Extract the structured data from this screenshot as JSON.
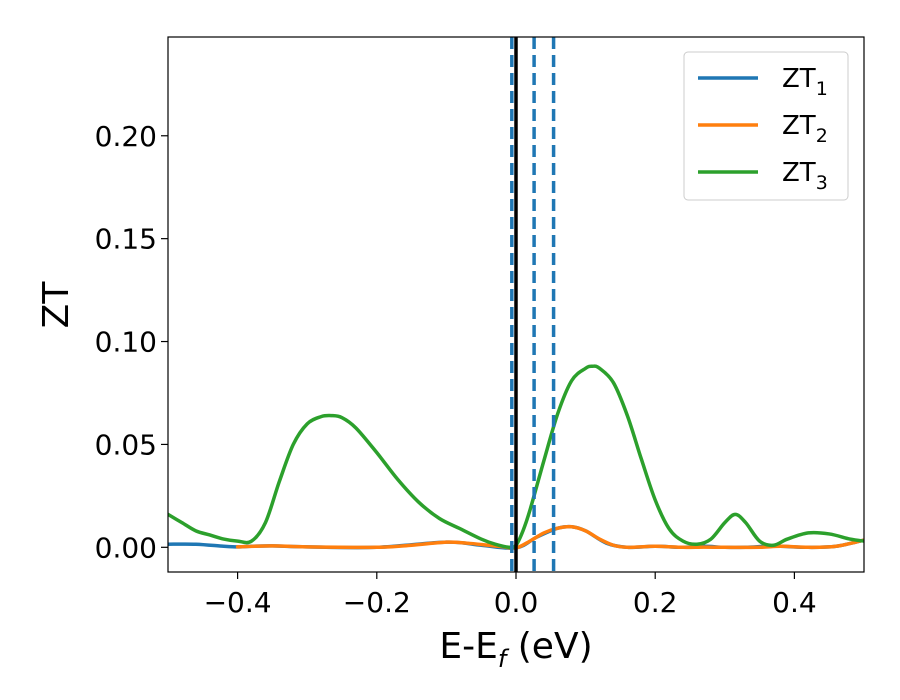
{
  "chart_data": {
    "type": "line",
    "xlabel": "E-E",
    "xlabel_sub": "f",
    "xlabel_unit": " (eV)",
    "ylabel": "ZT",
    "xlim": [
      -0.5,
      0.5
    ],
    "ylim": [
      -0.012,
      0.248
    ],
    "xticks": [
      -0.4,
      -0.2,
      0.0,
      0.2,
      0.4
    ],
    "xtick_labels": [
      "−0.4",
      "−0.2",
      "0.0",
      "0.2",
      "0.4"
    ],
    "yticks": [
      0.0,
      0.05,
      0.1,
      0.15,
      0.2
    ],
    "ytick_labels": [
      "0.00",
      "0.05",
      "0.10",
      "0.15",
      "0.20"
    ],
    "grid": false,
    "legend_position": "top-right",
    "vlines": [
      {
        "x": 0.0,
        "style": "solid",
        "color": "#000000"
      },
      {
        "x": -0.006,
        "style": "dashed",
        "color": "#1f77b4"
      },
      {
        "x": 0.026,
        "style": "dashed",
        "color": "#1f77b4"
      },
      {
        "x": 0.054,
        "style": "dashed",
        "color": "#1f77b4"
      }
    ],
    "series": [
      {
        "name": "ZT",
        "name_sub": "1",
        "color": "#1f77b4",
        "x": [
          -0.5,
          -0.46,
          -0.42,
          -0.4,
          -0.38,
          -0.35,
          -0.3,
          -0.2,
          -0.1,
          -0.05,
          0.0,
          0.03,
          0.06,
          0.08,
          0.1,
          0.13,
          0.16,
          0.2,
          0.24,
          0.27,
          0.3,
          0.33,
          0.36,
          0.38,
          0.42,
          0.46,
          0.5
        ],
        "values": [
          0.0015,
          0.0015,
          0.0005,
          0.0002,
          0.0005,
          0.0007,
          0.0002,
          0.0,
          0.0025,
          0.001,
          -0.0003,
          0.005,
          0.0093,
          0.01,
          0.008,
          0.002,
          0.0,
          0.0005,
          0.0,
          0.0005,
          0.0,
          0.0,
          0.0005,
          0.0005,
          0.0,
          0.0005,
          0.0035
        ]
      },
      {
        "name": "ZT",
        "name_sub": "2",
        "color": "#ff7f0e",
        "x": [
          -0.4,
          -0.35,
          -0.3,
          -0.2,
          -0.15,
          -0.1,
          -0.07,
          -0.04,
          -0.02,
          0.0,
          0.02,
          0.04,
          0.06,
          0.08,
          0.1,
          0.12,
          0.14,
          0.16,
          0.2,
          0.24,
          0.27,
          0.3,
          0.35,
          0.38,
          0.42,
          0.46,
          0.5
        ],
        "values": [
          0.0002,
          0.0007,
          0.0002,
          0.0,
          0.001,
          0.0025,
          0.002,
          0.001,
          0.0003,
          -0.0003,
          0.003,
          0.007,
          0.0093,
          0.01,
          0.008,
          0.004,
          0.001,
          0.0,
          0.0005,
          0.0,
          0.0001,
          0.0,
          0.0,
          0.0005,
          0.0,
          0.0005,
          0.0035
        ]
      },
      {
        "name": "ZT",
        "name_sub": "3",
        "color": "#2ca02c",
        "x": [
          -0.5,
          -0.48,
          -0.46,
          -0.44,
          -0.42,
          -0.4,
          -0.38,
          -0.36,
          -0.34,
          -0.32,
          -0.3,
          -0.28,
          -0.265,
          -0.25,
          -0.23,
          -0.2,
          -0.17,
          -0.14,
          -0.11,
          -0.08,
          -0.05,
          -0.03,
          -0.01,
          0.0,
          0.01,
          0.02,
          0.04,
          0.06,
          0.08,
          0.1,
          0.11,
          0.12,
          0.14,
          0.16,
          0.18,
          0.2,
          0.22,
          0.24,
          0.26,
          0.28,
          0.3,
          0.315,
          0.33,
          0.35,
          0.37,
          0.39,
          0.42,
          0.45,
          0.48,
          0.5
        ],
        "values": [
          0.016,
          0.012,
          0.008,
          0.006,
          0.004,
          0.003,
          0.003,
          0.012,
          0.032,
          0.05,
          0.06,
          0.0635,
          0.064,
          0.063,
          0.058,
          0.046,
          0.033,
          0.022,
          0.014,
          0.009,
          0.004,
          0.0015,
          0.0,
          0.001,
          0.008,
          0.018,
          0.042,
          0.065,
          0.081,
          0.087,
          0.088,
          0.087,
          0.08,
          0.064,
          0.043,
          0.023,
          0.009,
          0.003,
          0.0015,
          0.004,
          0.012,
          0.016,
          0.012,
          0.003,
          0.001,
          0.004,
          0.007,
          0.0065,
          0.004,
          0.003
        ]
      }
    ]
  }
}
